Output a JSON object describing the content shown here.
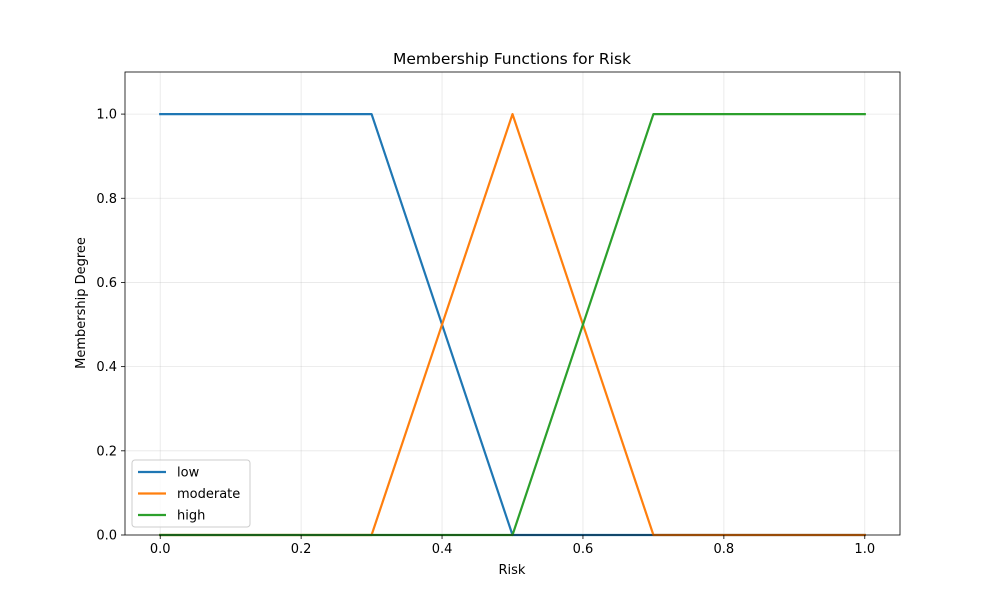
{
  "chart_data": {
    "type": "line",
    "title": "Membership Functions for Risk",
    "xlabel": "Risk",
    "ylabel": "Membership Degree",
    "xlim": [
      -0.05,
      1.05
    ],
    "ylim": [
      0,
      1.1
    ],
    "xticks": [
      0.0,
      0.2,
      0.4,
      0.6,
      0.8,
      1.0
    ],
    "yticks": [
      0.0,
      0.2,
      0.4,
      0.6,
      0.8,
      1.0
    ],
    "xtick_labels": [
      "0.0",
      "0.2",
      "0.4",
      "0.6",
      "0.8",
      "1.0"
    ],
    "ytick_labels": [
      "0.0",
      "0.2",
      "0.4",
      "0.6",
      "0.8",
      "1.0"
    ],
    "grid": true,
    "legend_position": "lower-left",
    "series": [
      {
        "name": "low",
        "color": "#1f77b4",
        "x": [
          0.0,
          0.3,
          0.5,
          1.0
        ],
        "y": [
          1.0,
          1.0,
          0.0,
          0.0
        ]
      },
      {
        "name": "moderate",
        "color": "#ff7f0e",
        "x": [
          0.0,
          0.3,
          0.5,
          0.7,
          1.0
        ],
        "y": [
          0.0,
          0.0,
          1.0,
          0.0,
          0.0
        ]
      },
      {
        "name": "high",
        "color": "#2ca02c",
        "x": [
          0.0,
          0.5,
          0.7,
          1.0
        ],
        "y": [
          0.0,
          0.0,
          1.0,
          1.0
        ]
      }
    ]
  }
}
